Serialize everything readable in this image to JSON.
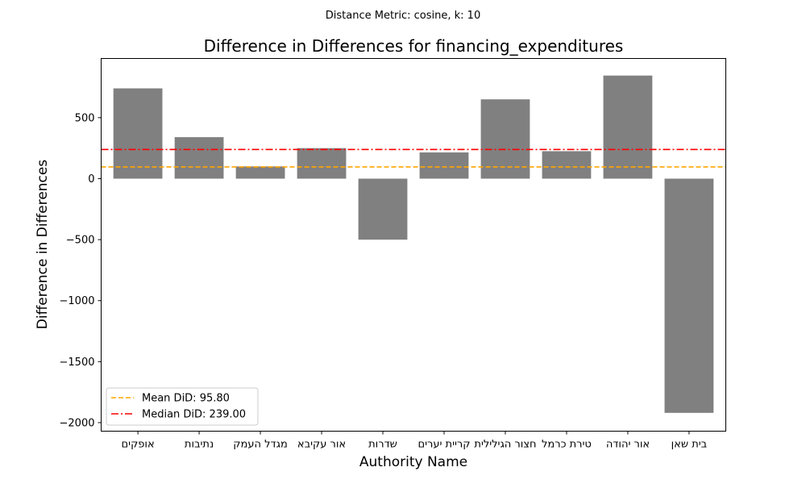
{
  "suptitle": "Distance Metric: cosine, k: 10",
  "chart_data": {
    "type": "bar",
    "title": "Difference in Differences for financing_expenditures",
    "xlabel": "Authority Name",
    "ylabel": "Difference in Differences",
    "ylim": [
      -2070,
      985
    ],
    "yticks": [
      500,
      0,
      -500,
      -1000,
      -1500,
      -2000
    ],
    "ytick_labels": [
      "500",
      "0",
      "−500",
      "−1000",
      "−1500",
      "−2000"
    ],
    "categories": [
      "אופקים",
      "נתיבות",
      "מגדל העמק",
      "אור עקיבא",
      "שדרות",
      "קריית יערים",
      "חצור הגלילית",
      "טירת כרמל",
      "אור יהודה",
      "בית שאן"
    ],
    "category_labels_as_rendered": [
      "םיקפוא",
      "תוביתנ",
      "קמעה לדגמ",
      "אביקע רוא",
      "תורדש",
      "םירעי תיירק",
      "תיליליגה רוצח",
      "למרכ תריט",
      "הדוהי רוא",
      "ןאש תיב"
    ],
    "values": [
      740,
      340,
      100,
      250,
      -500,
      215,
      650,
      225,
      845,
      -1920
    ],
    "bar_color": "#808080",
    "reference_lines": [
      {
        "name": "Mean DiD: 95.80",
        "value": 95.8,
        "color": "#ffa500",
        "style": "dashed"
      },
      {
        "name": "Median DiD: 239.00",
        "value": 239.0,
        "color": "#ff0000",
        "style": "dashdot"
      }
    ],
    "legend_placement": "lower-left",
    "grid": false
  }
}
